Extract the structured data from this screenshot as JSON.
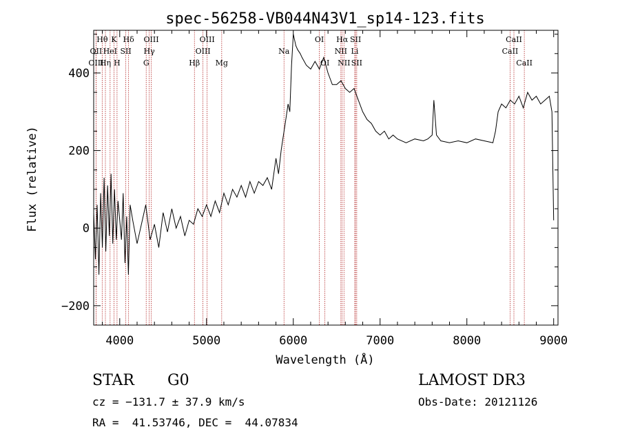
{
  "chart_data": {
    "type": "line",
    "title": "spec-56258-VB044N43V1_sp14-123.fits",
    "xlabel": "Wavelength (Å)",
    "ylabel": "Flux (relative)",
    "xlim": [
      3700,
      9050
    ],
    "ylim": [
      -250,
      510
    ],
    "xticks": [
      4000,
      5000,
      6000,
      7000,
      8000,
      9000
    ],
    "xtick_labels": [
      "4000",
      "5000",
      "6000",
      "7000",
      "8000",
      "9000"
    ],
    "yticks": [
      -200,
      0,
      200,
      400
    ],
    "ytick_labels": [
      "−200",
      "0",
      "200",
      "400"
    ],
    "grid": false,
    "series": [
      {
        "name": "flux",
        "x": [
          3700,
          3720,
          3740,
          3760,
          3780,
          3800,
          3820,
          3840,
          3860,
          3880,
          3900,
          3920,
          3940,
          3960,
          3980,
          4000,
          4020,
          4040,
          4060,
          4080,
          4100,
          4120,
          4150,
          4200,
          4250,
          4300,
          4350,
          4400,
          4450,
          4500,
          4550,
          4600,
          4650,
          4700,
          4750,
          4800,
          4850,
          4900,
          4950,
          5000,
          5050,
          5100,
          5150,
          5200,
          5250,
          5300,
          5350,
          5400,
          5450,
          5500,
          5550,
          5600,
          5650,
          5700,
          5750,
          5800,
          5830,
          5860,
          5880,
          5900,
          5920,
          5940,
          5960,
          5980,
          6000,
          6010,
          6030,
          6050,
          6080,
          6100,
          6150,
          6200,
          6250,
          6300,
          6350,
          6400,
          6450,
          6500,
          6550,
          6600,
          6650,
          6700,
          6750,
          6800,
          6850,
          6900,
          6950,
          7000,
          7050,
          7100,
          7150,
          7200,
          7300,
          7400,
          7500,
          7550,
          7600,
          7620,
          7650,
          7700,
          7800,
          7900,
          8000,
          8100,
          8200,
          8300,
          8330,
          8360,
          8400,
          8450,
          8500,
          8550,
          8600,
          8650,
          8700,
          8750,
          8800,
          8850,
          8900,
          8950,
          8980,
          9000
        ],
        "y": [
          40,
          -80,
          60,
          -120,
          90,
          -50,
          130,
          -60,
          110,
          -20,
          140,
          -40,
          100,
          -30,
          70,
          20,
          -30,
          90,
          -90,
          30,
          -120,
          60,
          20,
          -40,
          10,
          60,
          -30,
          10,
          -50,
          40,
          -10,
          50,
          0,
          30,
          -20,
          20,
          10,
          50,
          30,
          60,
          30,
          70,
          40,
          90,
          60,
          100,
          80,
          110,
          80,
          120,
          90,
          120,
          110,
          130,
          100,
          180,
          140,
          200,
          230,
          260,
          290,
          320,
          300,
          420,
          500,
          490,
          470,
          460,
          450,
          440,
          420,
          410,
          430,
          410,
          440,
          400,
          370,
          370,
          380,
          360,
          350,
          360,
          330,
          300,
          280,
          270,
          250,
          240,
          250,
          230,
          240,
          230,
          220,
          230,
          225,
          230,
          240,
          330,
          240,
          225,
          220,
          225,
          220,
          230,
          225,
          220,
          250,
          300,
          320,
          310,
          330,
          320,
          340,
          310,
          350,
          330,
          340,
          320,
          330,
          340,
          300,
          20
        ]
      }
    ],
    "spectral_lines": [
      {
        "label": "Hθ",
        "wavelength": 3798,
        "row": 0
      },
      {
        "label": "OII",
        "wavelength": 3727,
        "row": 1
      },
      {
        "label": "OIII",
        "wavelength": 3727,
        "row": 2
      },
      {
        "label": "K",
        "wavelength": 3934,
        "row": 0
      },
      {
        "label": "HeI",
        "wavelength": 3889,
        "row": 1
      },
      {
        "label": "Hη",
        "wavelength": 3835,
        "row": 2
      },
      {
        "label": "H",
        "wavelength": 3969,
        "row": 2
      },
      {
        "label": "SII",
        "wavelength": 4070,
        "row": 1
      },
      {
        "label": "Hδ",
        "wavelength": 4102,
        "row": 0
      },
      {
        "label": "OIII",
        "wavelength": 4363,
        "row": 0
      },
      {
        "label": "Hγ",
        "wavelength": 4340,
        "row": 1
      },
      {
        "label": "G",
        "wavelength": 4305,
        "row": 2
      },
      {
        "label": "OIII",
        "wavelength": 5007,
        "row": 0
      },
      {
        "label": "OIII",
        "wavelength": 4959,
        "row": 1
      },
      {
        "label": "Hβ",
        "wavelength": 4861,
        "row": 2
      },
      {
        "label": "Mg",
        "wavelength": 5175,
        "row": 2
      },
      {
        "label": "Na",
        "wavelength": 5893,
        "row": 1
      },
      {
        "label": "OI",
        "wavelength": 6300,
        "row": 0
      },
      {
        "label": "OI",
        "wavelength": 6364,
        "row": 2
      },
      {
        "label": "Hα",
        "wavelength": 6563,
        "row": 0
      },
      {
        "label": "SII",
        "wavelength": 6717,
        "row": 0
      },
      {
        "label": "NII",
        "wavelength": 6548,
        "row": 1
      },
      {
        "label": "Li",
        "wavelength": 6708,
        "row": 1
      },
      {
        "label": "NII",
        "wavelength": 6584,
        "row": 2
      },
      {
        "label": "SII",
        "wavelength": 6731,
        "row": 2
      },
      {
        "label": "CaII",
        "wavelength": 8542,
        "row": 0
      },
      {
        "label": "CaII",
        "wavelength": 8498,
        "row": 1
      },
      {
        "label": "CaII",
        "wavelength": 8662,
        "row": 2
      }
    ]
  },
  "info": {
    "class": "STAR",
    "subclass": "G0",
    "survey": "LAMOST DR3",
    "cz": "cz = −131.7 ± 37.9 km/s",
    "obs_date": "Obs-Date: 20121126",
    "radec": "RA =  41.53746, DEC =  44.07834"
  },
  "colors": {
    "line": "#000000",
    "marker_lines": "#b22222",
    "axes": "#000000"
  }
}
